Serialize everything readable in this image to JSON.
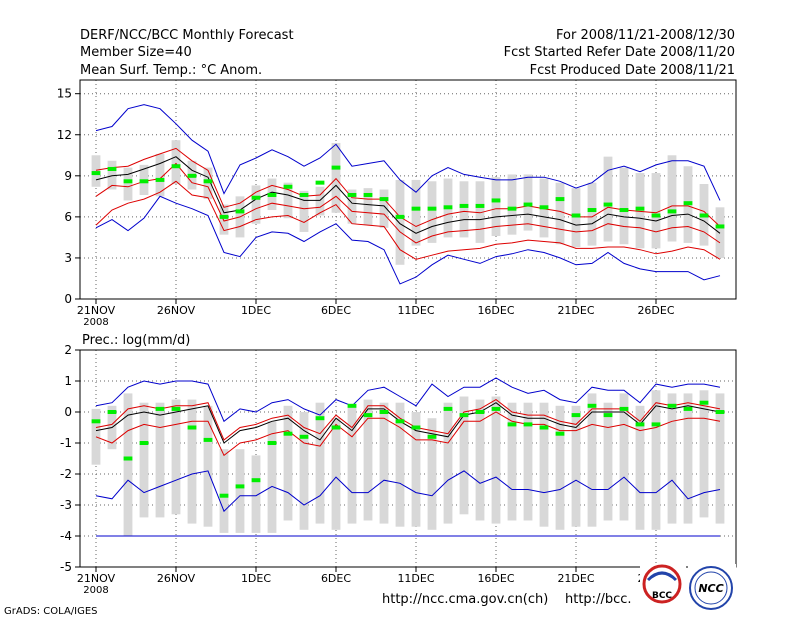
{
  "header": {
    "left": [
      "DERF/NCC/BCC Monthly Forecast",
      "Member Size=40",
      "Mean Surf. Temp.: °C Anom."
    ],
    "right": [
      "For 2008/11/21-2008/12/30",
      "Fcst Started Refer Date 2008/11/20",
      "Fcst Produced Date 2008/11/21"
    ]
  },
  "footer": {
    "grads": "GrADS: COLA/IGES",
    "url1": "http://ncc.cma.gov.cn(ch)",
    "url2": "http://bcc.",
    "logo1": "BCC",
    "logo2": "NCC"
  },
  "colors": {
    "box": "#d8d8d8",
    "median": "#00ee00",
    "mean": "#000000",
    "inner": "#dd0000",
    "outer": "#0000cc",
    "grid": "#666666"
  },
  "chart_data": [
    {
      "type": "line",
      "title": "Mean Surf. Temp.: °C Anom.",
      "x_ticks": [
        "21NOV",
        "26NOV",
        "1DEC",
        "6DEC",
        "11DEC",
        "16DEC",
        "21DEC",
        "26DEC"
      ],
      "x_tick_days": [
        1,
        6,
        11,
        16,
        21,
        26,
        31,
        36
      ],
      "x_sublabel": "2008",
      "ylim": [
        0,
        16
      ],
      "yticks": [
        0,
        3,
        6,
        9,
        12,
        15
      ],
      "days": [
        1,
        2,
        3,
        4,
        5,
        6,
        7,
        8,
        9,
        10,
        11,
        12,
        13,
        14,
        15,
        16,
        17,
        18,
        19,
        20,
        21,
        22,
        23,
        24,
        25,
        26,
        27,
        28,
        29,
        30,
        31,
        32,
        33,
        34,
        35,
        36,
        37,
        38,
        39,
        40
      ],
      "series": [
        {
          "name": "max",
          "values": [
            12.3,
            12.6,
            13.9,
            14.2,
            13.9,
            12.8,
            11.6,
            10.8,
            7.7,
            9.8,
            10.3,
            10.9,
            10.4,
            9.7,
            10.3,
            11.3,
            9.7,
            9.9,
            10.1,
            8.7,
            7.8,
            9.0,
            9.6,
            9.1,
            8.9,
            8.7,
            8.7,
            8.9,
            8.9,
            8.6,
            8.1,
            8.5,
            9.4,
            9.7,
            9.3,
            9.8,
            10.1,
            10.1,
            9.7,
            7.2
          ]
        },
        {
          "name": "upper",
          "values": [
            9.4,
            9.6,
            9.7,
            10.2,
            10.6,
            11.0,
            10.1,
            9.4,
            6.7,
            7.0,
            7.8,
            8.3,
            8.0,
            7.5,
            7.6,
            8.8,
            7.4,
            7.3,
            7.3,
            6.0,
            5.3,
            5.8,
            6.2,
            6.4,
            6.3,
            6.6,
            6.6,
            6.8,
            6.6,
            6.4,
            6.0,
            6.0,
            6.7,
            6.5,
            6.4,
            6.3,
            6.8,
            6.8,
            6.4,
            5.3
          ]
        },
        {
          "name": "mean",
          "values": [
            8.7,
            9.0,
            9.1,
            9.5,
            9.9,
            10.4,
            9.4,
            8.9,
            6.3,
            6.5,
            7.3,
            7.8,
            7.6,
            7.2,
            7.2,
            8.3,
            7.0,
            6.9,
            6.8,
            5.5,
            4.8,
            5.3,
            5.6,
            5.8,
            5.8,
            6.0,
            6.1,
            6.2,
            6.0,
            5.8,
            5.4,
            5.5,
            6.2,
            6.0,
            5.9,
            5.7,
            6.1,
            6.2,
            5.7,
            4.8
          ]
        },
        {
          "name": "lower",
          "values": [
            7.5,
            8.3,
            8.2,
            8.6,
            8.8,
            9.9,
            8.5,
            8.2,
            5.7,
            6.0,
            6.6,
            7.0,
            6.8,
            6.6,
            6.7,
            7.5,
            6.4,
            6.3,
            6.2,
            4.9,
            4.1,
            4.6,
            4.9,
            5.0,
            5.1,
            5.3,
            5.4,
            5.5,
            5.3,
            5.1,
            4.9,
            5.0,
            5.5,
            5.3,
            5.2,
            4.9,
            5.2,
            5.3,
            4.9,
            4.1
          ]
        },
        {
          "name": "lower2",
          "values": [
            5.4,
            6.5,
            7.0,
            7.3,
            7.8,
            8.6,
            7.6,
            7.4,
            5.0,
            5.3,
            5.8,
            6.0,
            6.1,
            5.6,
            6.3,
            6.9,
            5.5,
            5.4,
            5.3,
            3.6,
            2.9,
            3.2,
            3.5,
            3.6,
            3.7,
            4.0,
            4.1,
            4.3,
            4.2,
            4.1,
            3.7,
            3.7,
            3.8,
            3.8,
            3.6,
            3.3,
            3.5,
            3.8,
            3.6,
            2.9
          ]
        },
        {
          "name": "min",
          "values": [
            5.2,
            5.8,
            5.0,
            5.9,
            7.5,
            7.0,
            6.6,
            6.1,
            3.4,
            3.1,
            4.5,
            4.9,
            4.8,
            4.2,
            4.9,
            5.5,
            4.3,
            4.2,
            3.6,
            1.1,
            1.6,
            2.5,
            3.2,
            2.9,
            2.6,
            3.1,
            3.3,
            3.6,
            3.4,
            3.0,
            2.5,
            2.6,
            3.4,
            2.6,
            2.2,
            2.0,
            2.0,
            2.0,
            1.4,
            1.7
          ]
        },
        {
          "name": "median",
          "values": [
            9.2,
            9.5,
            8.6,
            8.6,
            8.7,
            9.7,
            9.0,
            8.6,
            6.0,
            6.4,
            7.4,
            7.6,
            8.2,
            7.6,
            8.5,
            9.6,
            7.6,
            7.6,
            7.3,
            6.0,
            6.6,
            6.6,
            6.7,
            6.8,
            6.8,
            7.2,
            6.6,
            6.9,
            6.7,
            7.3,
            6.1,
            6.5,
            6.9,
            6.5,
            6.6,
            6.1,
            6.4,
            7.0,
            6.1,
            5.3
          ]
        },
        {
          "name": "box_high",
          "values": [
            10.5,
            10.1,
            9.6,
            9.8,
            10.6,
            11.6,
            10.1,
            9.6,
            6.9,
            7.5,
            8.3,
            8.8,
            8.5,
            7.9,
            8.2,
            11.4,
            8.0,
            8.1,
            8.0,
            8.7,
            8.7,
            8.6,
            8.8,
            8.6,
            8.6,
            8.9,
            9.1,
            9.1,
            8.8,
            8.5,
            8.1,
            8.5,
            10.4,
            9.6,
            9.2,
            9.2,
            10.5,
            9.7,
            8.4,
            6.7
          ]
        },
        {
          "name": "box_low",
          "values": [
            8.2,
            8.0,
            7.2,
            7.6,
            7.5,
            8.4,
            8.0,
            7.3,
            4.7,
            4.5,
            5.5,
            6.5,
            5.9,
            4.9,
            6.1,
            6.3,
            5.5,
            5.4,
            5.2,
            2.5,
            3.9,
            4.1,
            4.5,
            4.5,
            4.1,
            4.6,
            4.7,
            5.0,
            4.5,
            4.0,
            3.8,
            3.9,
            4.2,
            4.0,
            3.7,
            3.7,
            4.2,
            4.1,
            3.9,
            3.0
          ]
        }
      ]
    },
    {
      "type": "line",
      "title": "Prec.: log(mm/d)",
      "x_ticks": [
        "21NOV",
        "26NOV",
        "1DEC",
        "6DEC",
        "11DEC",
        "16DEC",
        "21DEC",
        "26DEC"
      ],
      "x_tick_days": [
        1,
        6,
        11,
        16,
        21,
        26,
        31,
        36
      ],
      "x_sublabel": "2008",
      "ylim": [
        -5,
        2
      ],
      "yticks": [
        -5,
        -4,
        -3,
        -2,
        -1,
        0,
        1,
        2
      ],
      "days": [
        1,
        2,
        3,
        4,
        5,
        6,
        7,
        8,
        9,
        10,
        11,
        12,
        13,
        14,
        15,
        16,
        17,
        18,
        19,
        20,
        21,
        22,
        23,
        24,
        25,
        26,
        27,
        28,
        29,
        30,
        31,
        32,
        33,
        34,
        35,
        36,
        37,
        38,
        39,
        40
      ],
      "series": [
        {
          "name": "max",
          "values": [
            0.2,
            0.3,
            0.8,
            1.0,
            0.9,
            1.0,
            1.0,
            0.9,
            -0.3,
            0.1,
            0.0,
            0.3,
            0.4,
            0.1,
            -0.1,
            0.4,
            0.2,
            0.7,
            0.8,
            0.5,
            0.2,
            0.9,
            0.5,
            0.8,
            0.8,
            1.1,
            0.8,
            0.6,
            0.7,
            0.4,
            0.3,
            0.8,
            0.7,
            0.7,
            0.3,
            0.9,
            0.8,
            0.9,
            0.9,
            0.8
          ]
        },
        {
          "name": "upper",
          "values": [
            -0.5,
            -0.4,
            0.1,
            0.2,
            0.1,
            0.2,
            0.2,
            0.3,
            -0.9,
            -0.5,
            -0.4,
            -0.2,
            -0.1,
            -0.5,
            -0.7,
            -0.1,
            -0.5,
            0.2,
            0.2,
            -0.2,
            -0.5,
            -0.6,
            -0.7,
            0.0,
            0.1,
            0.4,
            0.0,
            -0.1,
            -0.1,
            -0.3,
            -0.4,
            0.1,
            0.1,
            0.1,
            -0.3,
            0.3,
            0.2,
            0.3,
            0.2,
            0.1
          ]
        },
        {
          "name": "mean",
          "values": [
            -0.6,
            -0.5,
            -0.1,
            0.0,
            -0.1,
            0.0,
            0.1,
            0.2,
            -1.0,
            -0.6,
            -0.5,
            -0.3,
            -0.2,
            -0.6,
            -0.9,
            -0.2,
            -0.6,
            0.1,
            0.1,
            -0.3,
            -0.6,
            -0.7,
            -0.8,
            -0.1,
            0.0,
            0.3,
            -0.1,
            -0.2,
            -0.2,
            -0.4,
            -0.5,
            0.0,
            0.0,
            0.0,
            -0.4,
            0.2,
            0.1,
            0.2,
            0.1,
            0.0
          ]
        },
        {
          "name": "lower",
          "values": [
            -0.8,
            -1.0,
            -0.6,
            -0.4,
            -0.5,
            -0.4,
            -0.3,
            -0.3,
            -1.4,
            -1.0,
            -0.9,
            -0.7,
            -0.6,
            -1.0,
            -1.1,
            -0.4,
            -0.8,
            -0.2,
            -0.2,
            -0.5,
            -0.9,
            -0.9,
            -1.0,
            -0.3,
            -0.3,
            0.0,
            -0.3,
            -0.4,
            -0.4,
            -0.6,
            -0.6,
            -0.4,
            -0.5,
            -0.4,
            -0.6,
            -0.5,
            -0.3,
            -0.2,
            -0.2,
            -0.3
          ]
        },
        {
          "name": "min",
          "values": [
            -2.7,
            -2.8,
            -2.2,
            -2.6,
            -2.4,
            -2.2,
            -2.0,
            -1.9,
            -3.2,
            -2.7,
            -2.7,
            -2.4,
            -2.6,
            -3.0,
            -2.7,
            -2.1,
            -2.6,
            -2.6,
            -2.2,
            -2.3,
            -2.6,
            -2.7,
            -2.2,
            -1.9,
            -2.3,
            -2.1,
            -2.5,
            -2.5,
            -2.6,
            -2.5,
            -2.2,
            -2.5,
            -2.5,
            -2.1,
            -2.6,
            -2.6,
            -2.2,
            -2.8,
            -2.6,
            -2.5
          ]
        },
        {
          "name": "floor",
          "values": [
            -4.0,
            -4.0,
            -4.0,
            -4.0,
            -4.0,
            -4.0,
            -4.0,
            -4.0,
            -4.0,
            -4.0,
            -4.0,
            -4.0,
            -4.0,
            -4.0,
            -4.0,
            -4.0,
            -4.0,
            -4.0,
            -4.0,
            -4.0,
            -4.0,
            -4.0,
            -4.0,
            -4.0,
            -4.0,
            -4.0,
            -4.0,
            -4.0,
            -4.0,
            -4.0,
            -4.0,
            -4.0,
            -4.0,
            -4.0,
            -4.0,
            -4.0,
            -4.0,
            -4.0,
            -4.0,
            -4.0
          ]
        },
        {
          "name": "median",
          "values": [
            -0.3,
            0.0,
            -1.5,
            -1.0,
            0.1,
            0.1,
            -0.5,
            -0.9,
            -2.7,
            -2.4,
            -2.2,
            -1.0,
            -0.7,
            -0.8,
            -0.2,
            -0.5,
            0.2,
            -0.1,
            0.0,
            -0.3,
            -0.5,
            -0.8,
            0.1,
            -0.1,
            0.0,
            0.1,
            -0.4,
            -0.4,
            -0.5,
            -0.7,
            -0.1,
            0.2,
            -0.1,
            0.1,
            -0.4,
            -0.4,
            0.2,
            0.1,
            0.3,
            0.0
          ]
        },
        {
          "name": "box_high",
          "values": [
            0.1,
            0.2,
            0.6,
            0.3,
            0.3,
            0.4,
            0.4,
            0.2,
            -1.2,
            -1.2,
            -1.4,
            -0.3,
            0.2,
            0.0,
            0.3,
            -0.2,
            0.2,
            0.4,
            0.3,
            0.3,
            0.0,
            -0.2,
            0.3,
            0.5,
            0.4,
            0.5,
            0.3,
            0.3,
            0.3,
            0.2,
            0.2,
            0.6,
            0.3,
            0.6,
            0.2,
            0.7,
            0.6,
            0.6,
            0.7,
            0.6
          ]
        },
        {
          "name": "box_low",
          "values": [
            -1.7,
            -1.2,
            -4.0,
            -3.4,
            -3.4,
            -3.3,
            -3.6,
            -3.7,
            -3.9,
            -3.9,
            -3.9,
            -3.9,
            -3.5,
            -3.8,
            -3.6,
            -3.8,
            -3.6,
            -3.5,
            -3.6,
            -3.7,
            -3.7,
            -3.8,
            -3.6,
            -3.3,
            -3.5,
            -3.6,
            -3.5,
            -3.5,
            -3.7,
            -3.8,
            -3.7,
            -3.7,
            -3.5,
            -3.5,
            -3.8,
            -3.8,
            -3.6,
            -3.6,
            -3.4,
            -3.6
          ]
        }
      ]
    }
  ]
}
